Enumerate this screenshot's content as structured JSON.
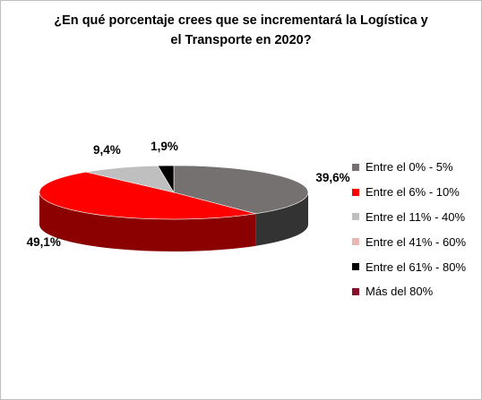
{
  "chart_data": {
    "type": "pie",
    "title_lines": [
      "¿En qué porcentaje crees que se incrementará la Logística y",
      "el Transporte en 2020?"
    ],
    "categories": [
      "Entre el 0% - 5%",
      "Entre el 6% - 10%",
      "Entre el 11% - 40%",
      "Entre el 41% - 60%",
      "Entre el 61% - 80%",
      "Más del 80%"
    ],
    "values": [
      39.6,
      49.1,
      9.4,
      0,
      1.9,
      0
    ],
    "data_labels": [
      "39,6%",
      "49,1%",
      "9,4%",
      "",
      "1,9%",
      ""
    ],
    "colors": [
      "#767171",
      "#ff0000",
      "#bfbfbf",
      "#e6b8af",
      "#000000",
      "#8b0d2c"
    ],
    "side_colors": [
      "#333333",
      "#8b0000",
      "#7f7f7f",
      "#b08a82",
      "#000000",
      "#4d0618"
    ],
    "legend_position": "right",
    "three_d": true
  }
}
